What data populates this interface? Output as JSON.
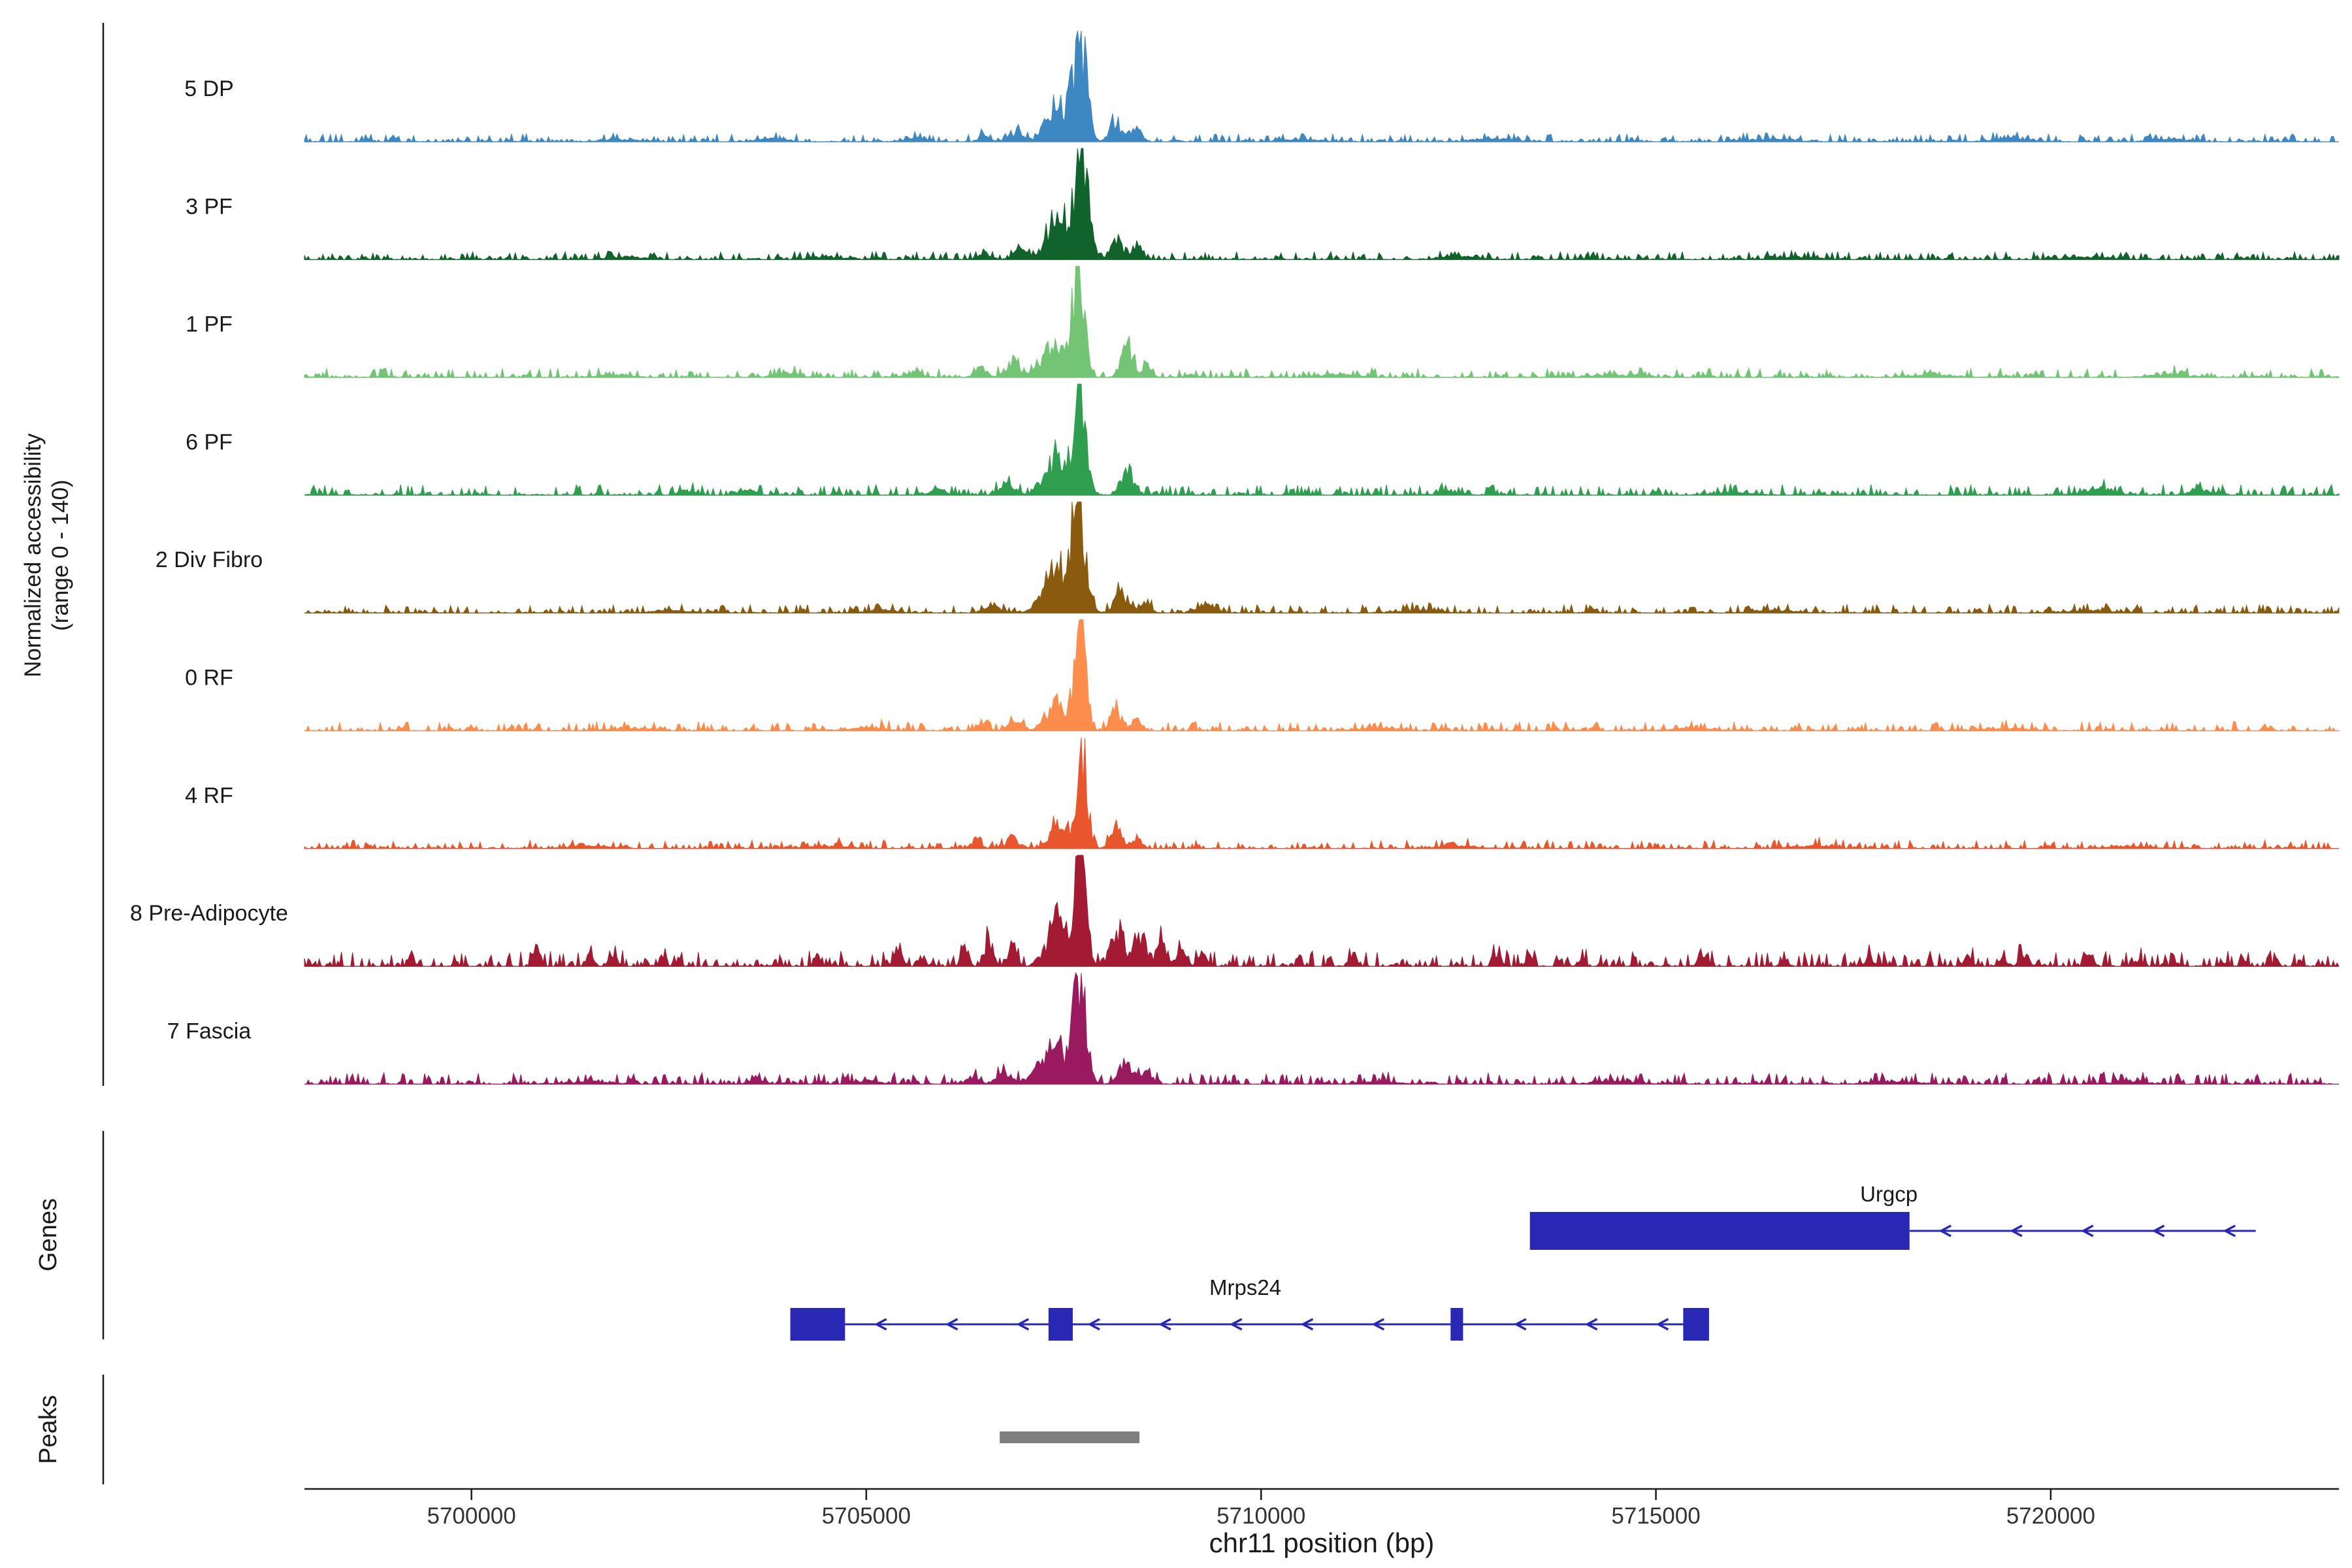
{
  "figure": {
    "y_axis_title_line1": "Normalized accessibility",
    "y_axis_title_line2": "(range 0 - 140)",
    "x_axis_title": "chr11 position (bp)",
    "genes_section_label": "Genes",
    "peaks_section_label": "Peaks"
  },
  "chart_data": {
    "type": "area",
    "subtype": "genome-coverage-tracks",
    "region": {
      "chrom": "chr11",
      "start": 5697885,
      "end": 5723650
    },
    "ylim": [
      0,
      140
    ],
    "x_ticks": [
      5700000,
      5705000,
      5710000,
      5715000,
      5720000
    ],
    "x_tick_labels": [
      "5700000",
      "5705000",
      "5710000",
      "5715000",
      "5720000"
    ],
    "main_peak_bp": 5707710,
    "tracks": [
      {
        "label": "5 DP",
        "color": "#3d87c3",
        "noise": 1.1,
        "bumps": [
          [
            5707710,
            80,
            132
          ],
          [
            5707430,
            140,
            48
          ],
          [
            5708160,
            70,
            26
          ],
          [
            5708430,
            60,
            16
          ],
          [
            5706900,
            80,
            14
          ],
          [
            5706500,
            70,
            9
          ],
          [
            5705600,
            120,
            5
          ],
          [
            5703800,
            150,
            4
          ],
          [
            5701900,
            200,
            3
          ],
          [
            5710500,
            200,
            3
          ],
          [
            5713000,
            250,
            3
          ],
          [
            5716500,
            250,
            3
          ],
          [
            5719500,
            250,
            3
          ],
          [
            5721500,
            200,
            3
          ]
        ]
      },
      {
        "label": "3 PF",
        "color": "#11632b",
        "noise": 1.1,
        "bumps": [
          [
            5707730,
            78,
            138
          ],
          [
            5707440,
            140,
            60
          ],
          [
            5708160,
            70,
            28
          ],
          [
            5708420,
            60,
            18
          ],
          [
            5706950,
            80,
            11
          ],
          [
            5706500,
            70,
            7
          ],
          [
            5704500,
            200,
            3
          ],
          [
            5702000,
            200,
            3
          ],
          [
            5712500,
            200,
            4
          ],
          [
            5716800,
            250,
            3
          ],
          [
            5720500,
            250,
            3
          ]
        ]
      },
      {
        "label": "1 PF",
        "color": "#74c476",
        "noise": 1.3,
        "bumps": [
          [
            5707690,
            72,
            138
          ],
          [
            5707380,
            150,
            42
          ],
          [
            5708300,
            75,
            40
          ],
          [
            5708550,
            60,
            14
          ],
          [
            5706850,
            90,
            18
          ],
          [
            5706450,
            70,
            12
          ],
          [
            5705600,
            100,
            6
          ],
          [
            5704000,
            150,
            4
          ],
          [
            5701800,
            200,
            3
          ],
          [
            5711000,
            250,
            3
          ],
          [
            5714500,
            250,
            3
          ],
          [
            5718500,
            250,
            3
          ],
          [
            5721500,
            250,
            3
          ]
        ]
      },
      {
        "label": "6 PF",
        "color": "#2f9e4f",
        "noise": 1.5,
        "bumps": [
          [
            5707700,
            78,
            138
          ],
          [
            5707400,
            140,
            46
          ],
          [
            5708300,
            75,
            35
          ],
          [
            5706800,
            90,
            13
          ],
          [
            5705900,
            100,
            7
          ],
          [
            5703500,
            80,
            8
          ],
          [
            5702700,
            100,
            5
          ],
          [
            5712400,
            150,
            4
          ],
          [
            5716000,
            250,
            3
          ],
          [
            5720600,
            180,
            8
          ],
          [
            5721900,
            150,
            6
          ]
        ]
      },
      {
        "label": "2 Div Fibro",
        "color": "#8a5a0e",
        "noise": 1.2,
        "bumps": [
          [
            5707690,
            85,
            138
          ],
          [
            5707400,
            150,
            62
          ],
          [
            5708220,
            80,
            26
          ],
          [
            5708520,
            70,
            15
          ],
          [
            5709300,
            120,
            10
          ],
          [
            5706600,
            90,
            8
          ],
          [
            5705200,
            150,
            4
          ],
          [
            5702500,
            200,
            3
          ],
          [
            5712000,
            250,
            3
          ],
          [
            5716500,
            250,
            3
          ],
          [
            5720500,
            250,
            3
          ]
        ]
      },
      {
        "label": "0 RF",
        "color": "#fc8d4d",
        "noise": 1.3,
        "bumps": [
          [
            5707710,
            68,
            138
          ],
          [
            5707420,
            120,
            36
          ],
          [
            5708160,
            70,
            26
          ],
          [
            5708420,
            55,
            15
          ],
          [
            5706900,
            80,
            14
          ],
          [
            5706450,
            70,
            9
          ],
          [
            5705000,
            200,
            4
          ],
          [
            5702000,
            250,
            3
          ],
          [
            5711500,
            250,
            3
          ],
          [
            5715500,
            250,
            3
          ],
          [
            5719500,
            250,
            3
          ]
        ]
      },
      {
        "label": "4 RF",
        "color": "#e8562e",
        "noise": 1.2,
        "bumps": [
          [
            5707730,
            64,
            138
          ],
          [
            5707460,
            110,
            32
          ],
          [
            5708160,
            70,
            30
          ],
          [
            5708420,
            55,
            13
          ],
          [
            5706850,
            90,
            11
          ],
          [
            5706400,
            70,
            7
          ],
          [
            5704500,
            250,
            3
          ],
          [
            5701500,
            250,
            3
          ],
          [
            5712500,
            250,
            3
          ],
          [
            5717000,
            250,
            3
          ],
          [
            5721000,
            250,
            3
          ]
        ]
      },
      {
        "label": "8 Pre-Adipocyte",
        "color": "#a21b32",
        "noise": 2.2,
        "bumps": [
          [
            5707710,
            72,
            138
          ],
          [
            5707420,
            130,
            55
          ],
          [
            5708180,
            85,
            42
          ],
          [
            5708480,
            70,
            36
          ],
          [
            5708750,
            60,
            28
          ],
          [
            5709000,
            50,
            18
          ],
          [
            5699250,
            35,
            8
          ],
          [
            5700820,
            45,
            22
          ],
          [
            5701500,
            45,
            14
          ],
          [
            5701820,
            40,
            12
          ],
          [
            5702420,
            40,
            12
          ],
          [
            5705400,
            50,
            24
          ],
          [
            5705700,
            40,
            14
          ],
          [
            5706250,
            45,
            26
          ],
          [
            5706550,
            50,
            38
          ],
          [
            5706850,
            50,
            30
          ],
          [
            5709250,
            50,
            16
          ],
          [
            5711160,
            45,
            16
          ],
          [
            5712990,
            45,
            18
          ],
          [
            5713400,
            40,
            12
          ],
          [
            5714050,
            40,
            10
          ],
          [
            5715590,
            45,
            20
          ],
          [
            5716640,
            40,
            10
          ],
          [
            5717700,
            40,
            8
          ],
          [
            5718960,
            45,
            14
          ],
          [
            5719400,
            40,
            10
          ],
          [
            5719630,
            40,
            12
          ],
          [
            5720490,
            40,
            12
          ],
          [
            5721100,
            40,
            8
          ],
          [
            5722200,
            40,
            6
          ]
        ]
      },
      {
        "label": "7 Fascia",
        "color": "#991a5e",
        "noise": 1.6,
        "bumps": [
          [
            5707700,
            80,
            135
          ],
          [
            5707370,
            160,
            50
          ],
          [
            5708280,
            85,
            26
          ],
          [
            5708560,
            70,
            16
          ],
          [
            5706750,
            100,
            13
          ],
          [
            5706350,
            80,
            8
          ],
          [
            5703600,
            80,
            7
          ],
          [
            5705000,
            150,
            4
          ],
          [
            5701500,
            250,
            3
          ],
          [
            5711500,
            250,
            3
          ],
          [
            5714500,
            250,
            3
          ],
          [
            5718000,
            250,
            3
          ],
          [
            5721000,
            250,
            3
          ]
        ]
      }
    ],
    "genes": [
      {
        "name": "Urgcp",
        "strand": "-",
        "color": "#2828b4",
        "exons": [
          [
            5713404,
            5718212
          ]
        ],
        "line": [
          5718212,
          5722596
        ],
        "label_bp": 5717950
      },
      {
        "name": "Mrps24",
        "strand": "-",
        "color": "#2828b4",
        "exons": [
          [
            5704038,
            5704731
          ],
          [
            5707308,
            5707615
          ],
          [
            5712400,
            5712558
          ],
          [
            5715346,
            5715673
          ]
        ],
        "line": [
          5704731,
          5715673
        ],
        "label_bp": 5709800
      }
    ],
    "peaks": [
      {
        "start": 5706690,
        "end": 5708460,
        "color": "#7f7f7f"
      }
    ]
  }
}
